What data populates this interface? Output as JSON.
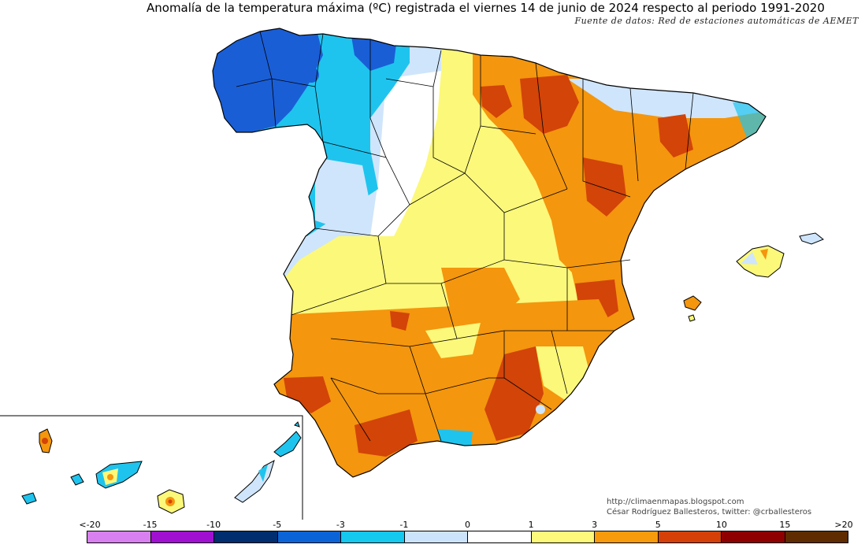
{
  "title": "Anomalía de la temperatura máxima (ºC) registrada el viernes 14 de junio de 2024 respecto al periodo 1991-2020",
  "source": "Fuente de datos: Red de estaciones automáticas de AEMET",
  "credits": {
    "url": "http://climaenmapas.blogspot.com",
    "author": "César Rodríguez Ballesteros, twitter: @crballesteros"
  },
  "legend": {
    "tick_labels": [
      "<-20",
      "-15",
      "-10",
      "-5",
      "-3",
      "-1",
      "0",
      "1",
      "3",
      "5",
      "10",
      "15",
      ">20"
    ],
    "colors": [
      "#d880f0",
      "#a010d0",
      "#002e6e",
      "#0a64d8",
      "#14c8ee",
      "#cce4fb",
      "#ffffff",
      "#fdf97a",
      "#f79a0c",
      "#d44008",
      "#8e0000",
      "#5e2c00"
    ]
  },
  "colors": {
    "very_cold": "#1a5ed6",
    "cold": "#1fc4ee",
    "cool": "#cfe5fb",
    "neutral": "#ffffff",
    "warm": "#fcf87a",
    "hot": "#f4960e",
    "very_hot": "#d24408",
    "sea": "#ffffff",
    "border": "#000000"
  }
}
